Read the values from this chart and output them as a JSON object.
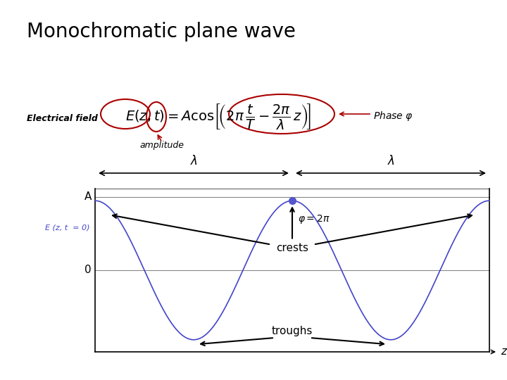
{
  "title": "Monochromatic plane wave",
  "title_fontsize": 20,
  "bg_color": "#ffffff",
  "wave_color": "#4444cc",
  "wave_linewidth": 1.2,
  "circle_color": "#aa0000",
  "dot_color": "#5555cc",
  "electrical_field_label": "Electrical field",
  "amplitude_label": "amplitude",
  "phase_label": "Phase $\\varphi$",
  "crests_label": "crests",
  "troughs_label": "troughs",
  "phi_label": "$\\varphi=2\\pi$",
  "lambda_label": "$\\lambda$",
  "A_label": "A",
  "zero_label": "0",
  "z_label": "z",
  "E_label": "E (z, t  = 0)"
}
